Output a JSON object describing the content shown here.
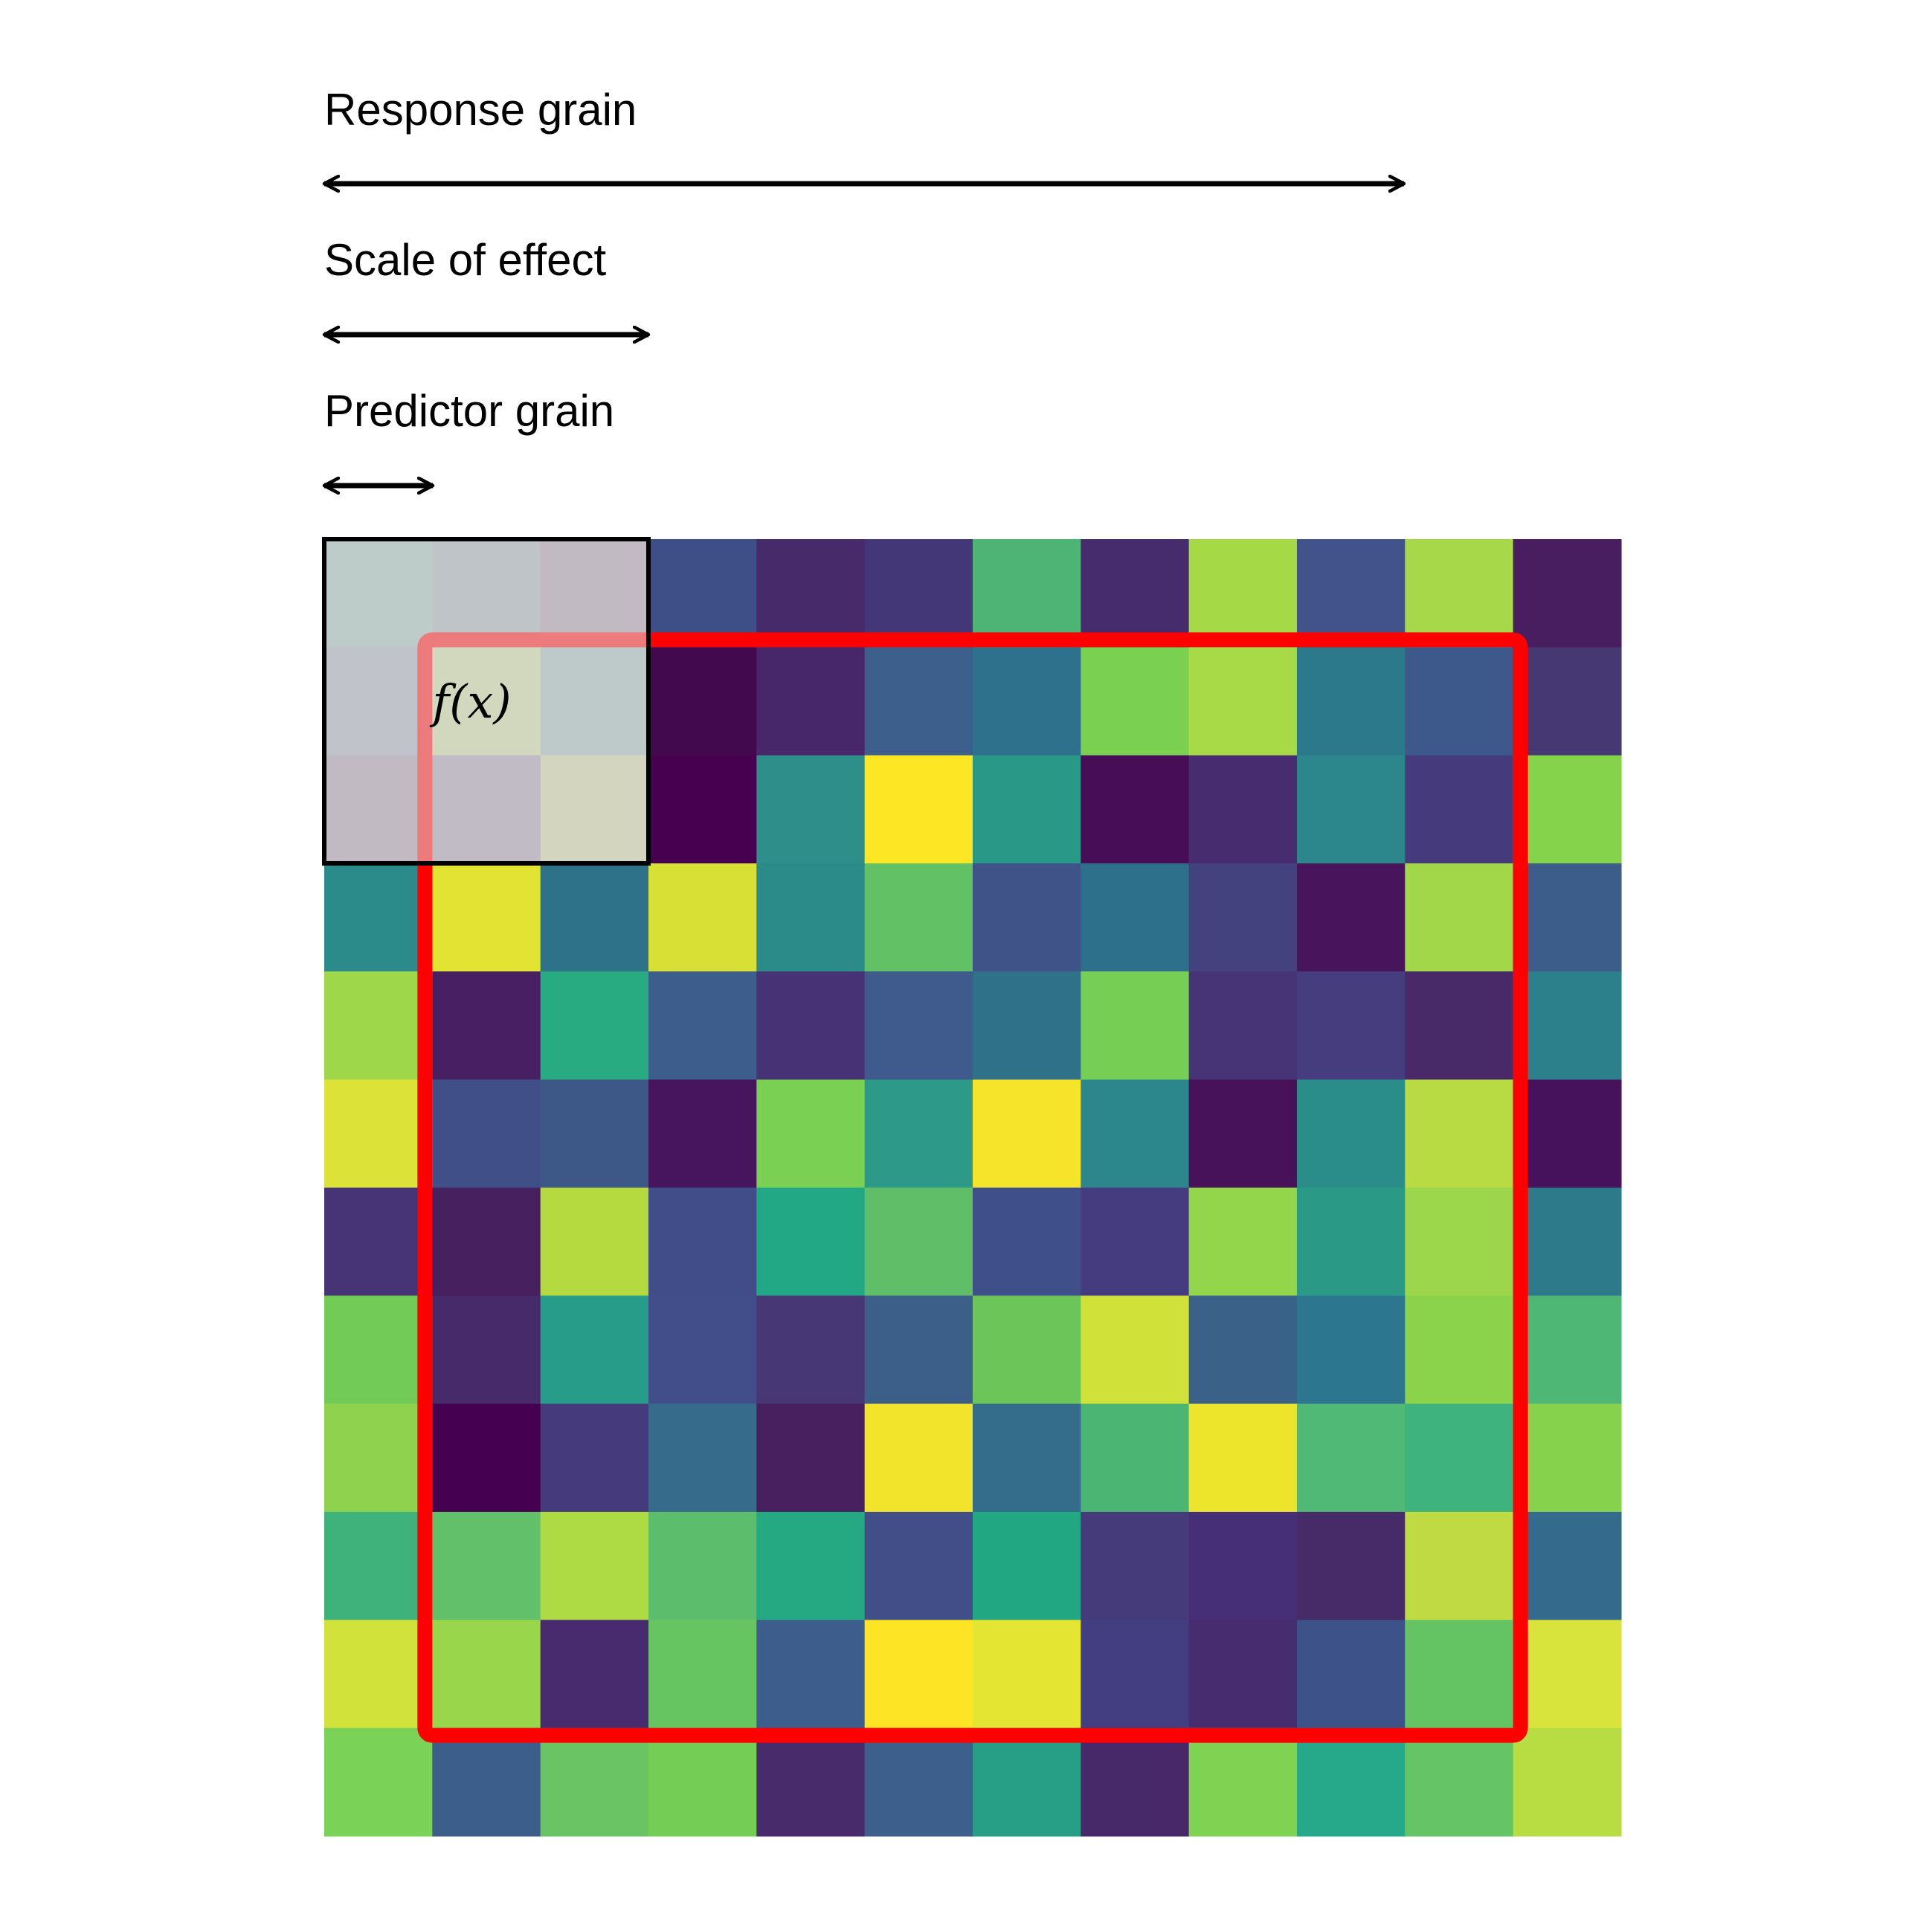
{
  "labels": {
    "response_grain": "Response grain",
    "scale_of_effect": "Scale of effect",
    "predictor_grain": "Predictor grain",
    "function": "f(x)"
  },
  "colors": {
    "arrow": "#000000",
    "response_window": "#ff0000",
    "focal_window": "#000000",
    "focal_overlay": "#e0e0e0"
  },
  "grid": {
    "rows": 12,
    "cols": 12,
    "cell_colors": [
      [
        "#95b3ad",
        "#97a2ab",
        "#9b8d9f",
        "#3e4f88",
        "#472a6a",
        "#443778",
        "#4db476",
        "#472c6d",
        "#a5d946",
        "#42528a",
        "#a7d84a",
        "#481e60"
      ],
      [
        "#999fae",
        "#c0ce96",
        "#95adad",
        "#43094e",
        "#47266a",
        "#3c5f8c",
        "#2e718c",
        "#7ad050",
        "#a8da48",
        "#2d798c",
        "#3d598c",
        "#463873"
      ],
      [
        "#9b8da0",
        "#9a8fa5",
        "#c4c798",
        "#470050",
        "#2d8e8a",
        "#fde624",
        "#299886",
        "#470d57",
        "#472c6f",
        "#2c878c",
        "#453b7c",
        "#85d34b"
      ],
      [
        "#2b8a8a",
        "#e2e332",
        "#2d7288",
        "#d8e036",
        "#2b8b89",
        "#63c165",
        "#3f5389",
        "#2d708c",
        "#44417f",
        "#48155c",
        "#a1d749",
        "#3c5d89"
      ],
      [
        "#9ed84a",
        "#481f63",
        "#29ab82",
        "#3d5e8c",
        "#463274",
        "#3f5a8c",
        "#2e7189",
        "#77ce55",
        "#473476",
        "#463d7f",
        "#482a68",
        "#2c808c"
      ],
      [
        "#dce238",
        "#404f88",
        "#3d5787",
        "#47155d",
        "#7ad052",
        "#2d9988",
        "#f6e42a",
        "#2c878c",
        "#48125a",
        "#2b8d8a",
        "#b8db44",
        "#46125b"
      ],
      [
        "#463476",
        "#47205f",
        "#b4da40",
        "#404d89",
        "#22a885",
        "#60be68",
        "#3f4f89",
        "#443c7e",
        "#93d64b",
        "#2a9a87",
        "#9cd74b",
        "#2d7a8b"
      ],
      [
        "#73cb57",
        "#472a6a",
        "#279c88",
        "#414e8a",
        "#473875",
        "#3c5f89",
        "#6cc559",
        "#d0e23a",
        "#3a6289",
        "#2c7690",
        "#8bd34b",
        "#4fb776"
      ],
      [
        "#8fd24e",
        "#460052",
        "#453b7c",
        "#366b8b",
        "#481f5f",
        "#f2e42a",
        "#336d8b",
        "#4bb573",
        "#ece52c",
        "#4fb975",
        "#3fb37e",
        "#86d24d"
      ],
      [
        "#3fb17a",
        "#63c06a",
        "#aedb44",
        "#5cbd6d",
        "#24a982",
        "#414e88",
        "#22a783",
        "#453a7a",
        "#472f78",
        "#472a68",
        "#c0da43",
        "#346a8b"
      ],
      [
        "#d1e23b",
        "#9ad64b",
        "#482a6e",
        "#66c461",
        "#3d5e8c",
        "#fde424",
        "#e3e532",
        "#433e81",
        "#472d6f",
        "#3e528a",
        "#64c464",
        "#d8e43b"
      ],
      [
        "#7ad356",
        "#3c5e8a",
        "#6ac463",
        "#74ce56",
        "#472b6b",
        "#3c5f8b",
        "#279f87",
        "#472869",
        "#80d352",
        "#26a98a",
        "#65c466",
        "#b7dd43"
      ]
    ],
    "focal_window": {
      "row_start": 0,
      "col_start": 0,
      "size": 3
    },
    "response_window": {
      "row_start": 1,
      "col_start": 1,
      "size": 10
    }
  }
}
